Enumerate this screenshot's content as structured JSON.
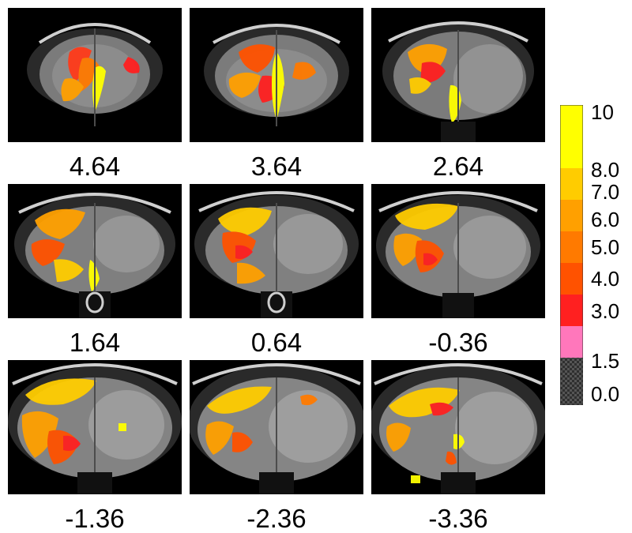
{
  "figure": {
    "panels": [
      {
        "label": "4.64"
      },
      {
        "label": "3.64"
      },
      {
        "label": "2.64"
      },
      {
        "label": "1.64"
      },
      {
        "label": "0.64"
      },
      {
        "label": "-0.36"
      },
      {
        "label": "-1.36"
      },
      {
        "label": "-2.36"
      },
      {
        "label": "-3.36"
      }
    ]
  },
  "colorbar": {
    "labels": [
      "10",
      "8.0",
      "7.0",
      "6.0",
      "5.0",
      "4.0",
      "3.0",
      "1.5",
      "0.0"
    ],
    "colors": {
      "c10_8": "#ffff00",
      "c8_7": "#ffcc00",
      "c7_6": "#ffa000",
      "c6_5": "#ff7a00",
      "c5_4": "#ff5200",
      "c4_3": "#ff2020",
      "c3_15": "#ff77bb",
      "c15_0": "#333333"
    }
  }
}
